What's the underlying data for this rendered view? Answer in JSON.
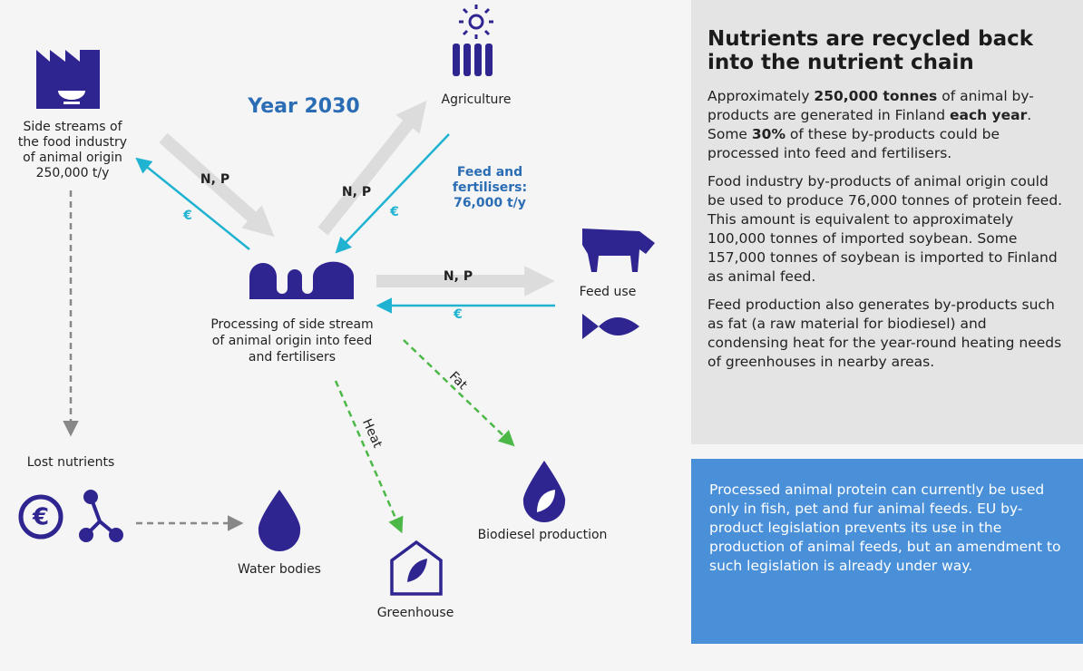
{
  "diagram": {
    "year": "Year 2030",
    "nodes": {
      "side_streams": {
        "lines": [
          "Side streams of",
          "the food industry",
          "of animal origin",
          "250,000 t/y"
        ]
      },
      "agriculture": {
        "label": "Agriculture"
      },
      "processing": {
        "lines": [
          "Processing of side stream",
          "of animal origin into feed",
          "and fertilisers"
        ]
      },
      "feed_use": {
        "label": "Feed use"
      },
      "lost_nutrients": {
        "label": "Lost nutrients"
      },
      "water_bodies": {
        "label": "Water bodies"
      },
      "greenhouse": {
        "label": "Greenhouse"
      },
      "biodiesel": {
        "label": "Biodiesel production"
      }
    },
    "edges": {
      "side_to_processing": "N, P",
      "processing_to_side": "€",
      "processing_to_agriculture": "N, P",
      "agriculture_to_processing": "€",
      "agriculture_output": [
        "Feed and",
        "fertilisers:",
        "76,000 t/y"
      ],
      "processing_to_feed": "N, P",
      "feed_to_processing": "€",
      "fat": "Fat",
      "heat": "Heat"
    }
  },
  "panel": {
    "title": "Nutrients are recycled back into the nutrient chain",
    "paragraphs": [
      [
        {
          "text": "Approximately ",
          "bold": false
        },
        {
          "text": "250,000 tonnes",
          "bold": true
        },
        {
          "text": " of animal by-products are generated in Finland ",
          "bold": false
        },
        {
          "text": "each year",
          "bold": true
        },
        {
          "text": ". Some ",
          "bold": false
        },
        {
          "text": "30%",
          "bold": true
        },
        {
          "text": " of these by-products could be processed into feed and fertilisers.",
          "bold": false
        }
      ],
      [
        {
          "text": "Food industry by-products of animal origin could be used to produce 76,000 tonnes of protein feed. This amount is equivalent to approximately 100,000 tonnes of imported soybean. Some 157,000 tonnes of soybean is imported to Finland as animal feed.",
          "bold": false
        }
      ],
      [
        {
          "text": "Feed production also generates by-products such as fat (a raw material for biodiesel) and condensing heat for the year-round heating needs of greenhouses in nearby areas.",
          "bold": false
        }
      ]
    ],
    "note": "Processed animal protein can currently be used only in fish, pet and fur animal feeds. EU by-product legislation prevents its use in the production of animal feeds, but an amendment to such legislation is already under way."
  }
}
